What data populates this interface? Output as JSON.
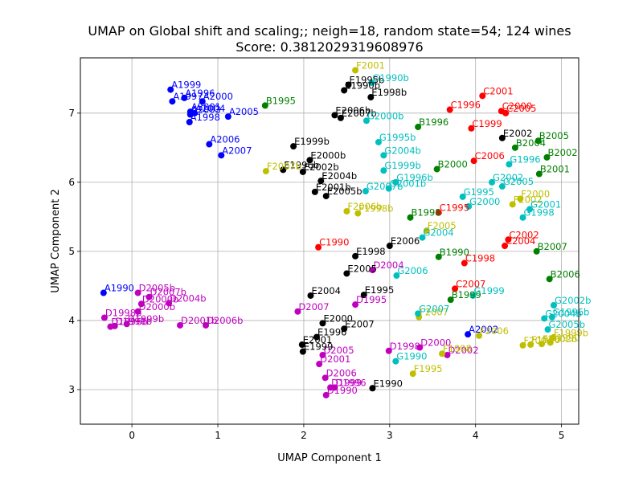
{
  "chart_data": {
    "type": "scatter",
    "title": "UMAP on Global shift and scaling;; neigh=18, random state=54; 124 wines",
    "subtitle": "Score: 0.3812029319608976",
    "xlabel": "UMAP Component 1",
    "ylabel": "UMAP Component 2",
    "xlim": [
      -0.6,
      5.2
    ],
    "ylim": [
      2.5,
      7.8
    ],
    "xticks": [
      "0",
      "1",
      "2",
      "3",
      "4",
      "5"
    ],
    "yticks": [
      "3",
      "4",
      "5",
      "6",
      "7"
    ],
    "grid": true,
    "colors": {
      "A": "#0000ff",
      "B": "#008000",
      "C": "#ff0000",
      "D": "#bf00bf",
      "E": "#000000",
      "F": "#bfbf00",
      "G": "#00bfbf"
    },
    "points": [
      {
        "label": "A1999",
        "x": 0.45,
        "y": 7.34
      },
      {
        "label": "A1996",
        "x": 0.61,
        "y": 7.22
      },
      {
        "label": "A1997",
        "x": 0.47,
        "y": 7.17
      },
      {
        "label": "A2000",
        "x": 0.82,
        "y": 7.17
      },
      {
        "label": "A2001",
        "x": 0.68,
        "y": 7.02
      },
      {
        "label": "A2004",
        "x": 0.73,
        "y": 7.0
      },
      {
        "label": "A2003",
        "x": 0.68,
        "y": 6.98
      },
      {
        "label": "A2005",
        "x": 1.12,
        "y": 6.95
      },
      {
        "label": "A1998",
        "x": 0.67,
        "y": 6.87
      },
      {
        "label": "A2006",
        "x": 0.9,
        "y": 6.55
      },
      {
        "label": "A2007",
        "x": 1.04,
        "y": 6.39
      },
      {
        "label": "A1990",
        "x": -0.33,
        "y": 4.4
      },
      {
        "label": "A2002",
        "x": 3.91,
        "y": 3.8
      },
      {
        "label": "B1995",
        "x": 1.55,
        "y": 7.11
      },
      {
        "label": "B1996",
        "x": 3.33,
        "y": 6.8
      },
      {
        "label": "B2000",
        "x": 3.55,
        "y": 6.19
      },
      {
        "label": "B2005",
        "x": 4.73,
        "y": 6.6
      },
      {
        "label": "B2004",
        "x": 4.46,
        "y": 6.5
      },
      {
        "label": "B2002",
        "x": 4.83,
        "y": 6.36
      },
      {
        "label": "B2001",
        "x": 4.74,
        "y": 6.12
      },
      {
        "label": "B1998",
        "x": 3.24,
        "y": 5.49
      },
      {
        "label": "B1990",
        "x": 3.57,
        "y": 4.92
      },
      {
        "label": "B2007",
        "x": 4.71,
        "y": 5.0
      },
      {
        "label": "B2006",
        "x": 4.86,
        "y": 4.6
      },
      {
        "label": "B1999",
        "x": 3.71,
        "y": 4.3
      },
      {
        "label": "C2001",
        "x": 4.08,
        "y": 7.25
      },
      {
        "label": "C1996",
        "x": 3.7,
        "y": 7.05
      },
      {
        "label": "C2000",
        "x": 4.3,
        "y": 7.03
      },
      {
        "label": "C2005",
        "x": 4.35,
        "y": 7.0
      },
      {
        "label": "C1999",
        "x": 3.95,
        "y": 6.78
      },
      {
        "label": "C2006",
        "x": 3.98,
        "y": 6.31
      },
      {
        "label": "C1995",
        "x": 3.57,
        "y": 5.56
      },
      {
        "label": "C2002",
        "x": 4.38,
        "y": 5.17
      },
      {
        "label": "C2004",
        "x": 4.34,
        "y": 5.08
      },
      {
        "label": "C1998",
        "x": 3.87,
        "y": 4.83
      },
      {
        "label": "C1990",
        "x": 2.17,
        "y": 5.06
      },
      {
        "label": "C2007",
        "x": 3.76,
        "y": 4.46
      },
      {
        "label": "D2004",
        "x": 2.8,
        "y": 4.73
      },
      {
        "label": "D1995",
        "x": 2.6,
        "y": 4.23
      },
      {
        "label": "D2007",
        "x": 1.93,
        "y": 4.13
      },
      {
        "label": "D2005b",
        "x": 0.07,
        "y": 4.4
      },
      {
        "label": "D2007b",
        "x": 0.2,
        "y": 4.34
      },
      {
        "label": "D2004b",
        "x": 0.43,
        "y": 4.25
      },
      {
        "label": "D2000b",
        "x": 0.11,
        "y": 4.24
      },
      {
        "label": "D2000b",
        "x": 0.07,
        "y": 4.13
      },
      {
        "label": "D1998b",
        "x": -0.32,
        "y": 4.04
      },
      {
        "label": "D1999b",
        "x": -0.06,
        "y": 3.95
      },
      {
        "label": "D1990b",
        "x": -0.2,
        "y": 3.92
      },
      {
        "label": "D1996b",
        "x": -0.25,
        "y": 3.91
      },
      {
        "label": "D2001b",
        "x": 0.56,
        "y": 3.93
      },
      {
        "label": "D2006b",
        "x": 0.86,
        "y": 3.93
      },
      {
        "label": "D1998",
        "x": 2.99,
        "y": 3.56
      },
      {
        "label": "D2000",
        "x": 3.35,
        "y": 3.61
      },
      {
        "label": "D2002",
        "x": 3.67,
        "y": 3.5
      },
      {
        "label": "D2005",
        "x": 2.22,
        "y": 3.5
      },
      {
        "label": "D2001",
        "x": 2.18,
        "y": 3.37
      },
      {
        "label": "D2006",
        "x": 2.25,
        "y": 3.17
      },
      {
        "label": "D1999",
        "x": 2.31,
        "y": 3.03
      },
      {
        "label": "D1996",
        "x": 2.36,
        "y": 3.03
      },
      {
        "label": "D1990",
        "x": 2.26,
        "y": 2.92
      },
      {
        "label": "E1995b",
        "x": 2.52,
        "y": 7.41
      },
      {
        "label": "E1990b",
        "x": 2.47,
        "y": 7.33
      },
      {
        "label": "E1998b",
        "x": 2.78,
        "y": 7.23
      },
      {
        "label": "E2006b",
        "x": 2.36,
        "y": 6.97
      },
      {
        "label": "E2007b",
        "x": 2.43,
        "y": 6.93
      },
      {
        "label": "E1999b",
        "x": 1.88,
        "y": 6.52
      },
      {
        "label": "E2000b",
        "x": 2.07,
        "y": 6.32
      },
      {
        "label": "E1996b",
        "x": 1.76,
        "y": 6.18
      },
      {
        "label": "E2002b",
        "x": 1.99,
        "y": 6.15
      },
      {
        "label": "E2004b",
        "x": 2.2,
        "y": 6.02
      },
      {
        "label": "E2001b",
        "x": 2.13,
        "y": 5.86
      },
      {
        "label": "E2005b",
        "x": 2.26,
        "y": 5.8
      },
      {
        "label": "E2002",
        "x": 4.31,
        "y": 6.64
      },
      {
        "label": "E2006",
        "x": 3.0,
        "y": 5.08
      },
      {
        "label": "E1998",
        "x": 2.6,
        "y": 4.93
      },
      {
        "label": "E2005",
        "x": 2.5,
        "y": 4.68
      },
      {
        "label": "E2004",
        "x": 2.08,
        "y": 4.36
      },
      {
        "label": "E1995",
        "x": 2.7,
        "y": 4.37
      },
      {
        "label": "E2000",
        "x": 2.22,
        "y": 3.96
      },
      {
        "label": "E2007",
        "x": 2.47,
        "y": 3.88
      },
      {
        "label": "E1996",
        "x": 2.15,
        "y": 3.76
      },
      {
        "label": "E2001",
        "x": 1.98,
        "y": 3.65
      },
      {
        "label": "E1999",
        "x": 1.99,
        "y": 3.55
      },
      {
        "label": "E1990",
        "x": 2.8,
        "y": 3.02
      },
      {
        "label": "F2001",
        "x": 2.6,
        "y": 7.62
      },
      {
        "label": "F2007b",
        "x": 1.56,
        "y": 6.16
      },
      {
        "label": "F2006b",
        "x": 2.5,
        "y": 5.58
      },
      {
        "label": "F1998b",
        "x": 2.63,
        "y": 5.55
      },
      {
        "label": "F2005",
        "x": 3.43,
        "y": 5.3
      },
      {
        "label": "F2007",
        "x": 3.34,
        "y": 4.05
      },
      {
        "label": "F2000",
        "x": 4.52,
        "y": 5.76
      },
      {
        "label": "F2002",
        "x": 4.43,
        "y": 5.68
      },
      {
        "label": "F2006",
        "x": 4.04,
        "y": 3.78
      },
      {
        "label": "F1998",
        "x": 3.61,
        "y": 3.52
      },
      {
        "label": "F1995",
        "x": 3.27,
        "y": 3.23
      },
      {
        "label": "F1999b",
        "x": 4.9,
        "y": 3.75
      },
      {
        "label": "F2004",
        "x": 4.55,
        "y": 3.64
      },
      {
        "label": "F1996",
        "x": 4.64,
        "y": 3.65
      },
      {
        "label": "F2002b",
        "x": 4.77,
        "y": 3.66
      },
      {
        "label": "F1990",
        "x": 4.87,
        "y": 3.68
      },
      {
        "label": "G1990b",
        "x": 2.79,
        "y": 7.44
      },
      {
        "label": "G2000b",
        "x": 2.73,
        "y": 6.89
      },
      {
        "label": "G1995b",
        "x": 2.87,
        "y": 6.58
      },
      {
        "label": "G2004b",
        "x": 2.93,
        "y": 6.39
      },
      {
        "label": "G1999b",
        "x": 2.93,
        "y": 6.17
      },
      {
        "label": "G1996b",
        "x": 3.07,
        "y": 6.0
      },
      {
        "label": "G2007b",
        "x": 2.72,
        "y": 5.87
      },
      {
        "label": "G2001b",
        "x": 2.99,
        "y": 5.91
      },
      {
        "label": "G1996",
        "x": 4.39,
        "y": 6.26
      },
      {
        "label": "G2002",
        "x": 4.19,
        "y": 6.0
      },
      {
        "label": "G2005",
        "x": 4.31,
        "y": 5.94
      },
      {
        "label": "G1995",
        "x": 3.85,
        "y": 5.79
      },
      {
        "label": "G2000",
        "x": 3.92,
        "y": 5.65
      },
      {
        "label": "G2001",
        "x": 4.63,
        "y": 5.61
      },
      {
        "label": "G1998",
        "x": 4.55,
        "y": 5.49
      },
      {
        "label": "G2004",
        "x": 3.38,
        "y": 5.2
      },
      {
        "label": "G2006",
        "x": 3.08,
        "y": 4.65
      },
      {
        "label": "G1999",
        "x": 3.97,
        "y": 4.36
      },
      {
        "label": "G2007",
        "x": 3.33,
        "y": 4.1
      },
      {
        "label": "G2002b",
        "x": 4.91,
        "y": 4.22
      },
      {
        "label": "G2004b",
        "x": 4.8,
        "y": 4.03
      },
      {
        "label": "G1996b",
        "x": 4.89,
        "y": 4.05
      },
      {
        "label": "G2005b",
        "x": 4.84,
        "y": 3.87
      },
      {
        "label": "G1990",
        "x": 3.07,
        "y": 3.41
      }
    ]
  }
}
